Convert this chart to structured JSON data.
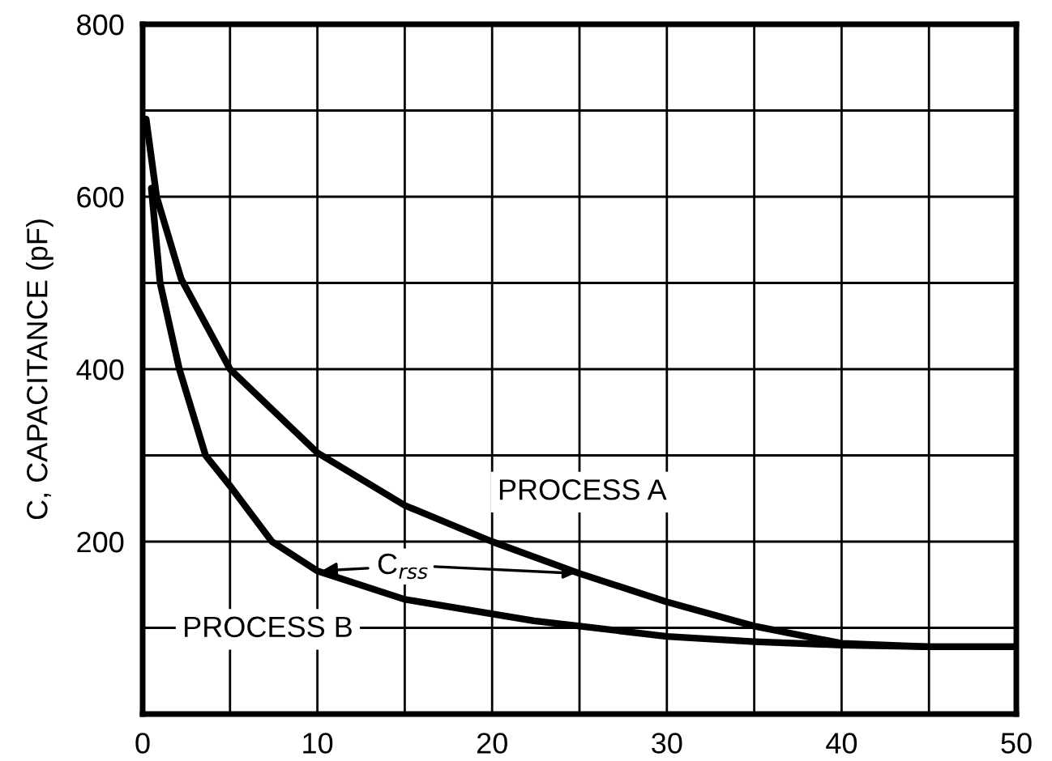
{
  "chart_data": {
    "type": "line",
    "ylabel": "C, CAPACITANCE (pF)",
    "xlim": [
      0,
      50
    ],
    "ylim": [
      0,
      800
    ],
    "xticks": [
      0,
      {
        "value": 5,
        "label": null
      },
      10,
      {
        "value": 15,
        "label": null
      },
      20,
      {
        "value": 25,
        "label": null
      },
      30,
      {
        "value": 35,
        "label": null
      },
      40,
      {
        "value": 45,
        "label": null
      },
      50
    ],
    "yticks": [
      {
        "value": 0,
        "label": null
      },
      {
        "value": 100,
        "label": null
      },
      200,
      {
        "value": 300,
        "label": null
      },
      400,
      {
        "value": 500,
        "label": null
      },
      600,
      {
        "value": 700,
        "label": null
      },
      800
    ],
    "grid": true,
    "legend": false,
    "marker": "none",
    "line_style": "solid",
    "series": [
      {
        "name": "PROCESS A",
        "color": "#000000",
        "x": [
          0.2,
          0.8,
          2.2,
          5,
          10,
          15,
          20,
          25,
          30,
          35,
          40,
          45,
          50
        ],
        "values": [
          690,
          600,
          505,
          400,
          303,
          242,
          200,
          163,
          130,
          102,
          82,
          78,
          78
        ]
      },
      {
        "name": "PROCESS B",
        "color": "#000000",
        "x": [
          0.5,
          1,
          2.1,
          3.6,
          5.1,
          7.4,
          10,
          15,
          22.4,
          25,
          30,
          35,
          40,
          45,
          50
        ],
        "values": [
          610,
          500,
          400,
          300,
          262,
          200,
          166,
          133,
          108,
          102,
          90,
          84,
          80,
          78,
          78
        ]
      }
    ],
    "annotations": [
      {
        "text": "C$_{rss}$",
        "x": 10,
        "y": 166
      }
    ]
  }
}
